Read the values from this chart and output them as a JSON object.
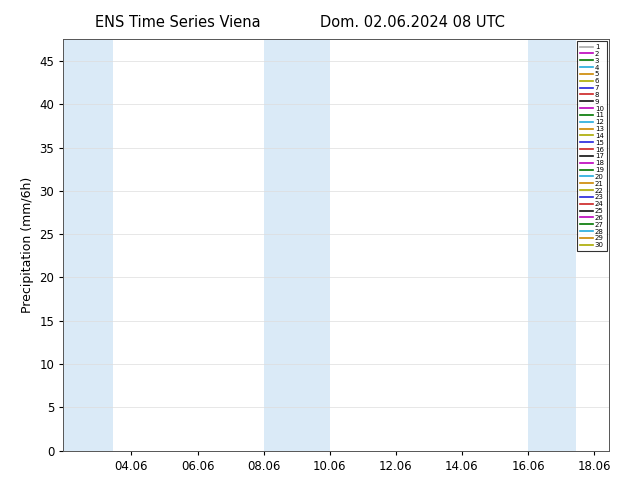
{
  "title": "ENS Time Series Viena",
  "title2": "Dom. 02.06.2024 08 UTC",
  "ylabel": "Precipitation (mm/6h)",
  "xlim": [
    2.0,
    18.5
  ],
  "ylim": [
    0,
    47.5
  ],
  "yticks": [
    0,
    5,
    10,
    15,
    20,
    25,
    30,
    35,
    40,
    45
  ],
  "xtick_labels": [
    "04.06",
    "06.06",
    "08.06",
    "10.06",
    "12.06",
    "14.06",
    "16.06",
    "18.06"
  ],
  "xtick_positions": [
    4.06,
    6.06,
    8.06,
    10.06,
    12.06,
    14.06,
    16.06,
    18.06
  ],
  "background_color": "#ffffff",
  "plot_bg_color": "#ffffff",
  "shaded_bands": [
    {
      "xmin": 2.0,
      "xmax": 3.5,
      "color": "#daeaf7"
    },
    {
      "xmin": 8.06,
      "xmax": 10.06,
      "color": "#daeaf7"
    },
    {
      "xmin": 16.06,
      "xmax": 17.5,
      "color": "#daeaf7"
    }
  ],
  "ensemble_colors": [
    "#aaaaaa",
    "#bb00bb",
    "#007700",
    "#22aadd",
    "#cc8800",
    "#aaaa00",
    "#2222dd",
    "#cc2222",
    "#111111",
    "#bb00bb",
    "#007700",
    "#22aadd",
    "#cc8800",
    "#aaaa00",
    "#2222dd",
    "#cc2222",
    "#111111",
    "#bb00bb",
    "#007700",
    "#22aadd",
    "#cc8800",
    "#aaaa00",
    "#2222dd",
    "#cc2222",
    "#111111",
    "#bb00bb",
    "#007700",
    "#22aadd",
    "#cc8800",
    "#aaaa00"
  ],
  "n_members": 30,
  "legend_fontsize": 5.0,
  "title_fontsize": 10.5,
  "figwidth": 6.34,
  "figheight": 4.9,
  "dpi": 100
}
